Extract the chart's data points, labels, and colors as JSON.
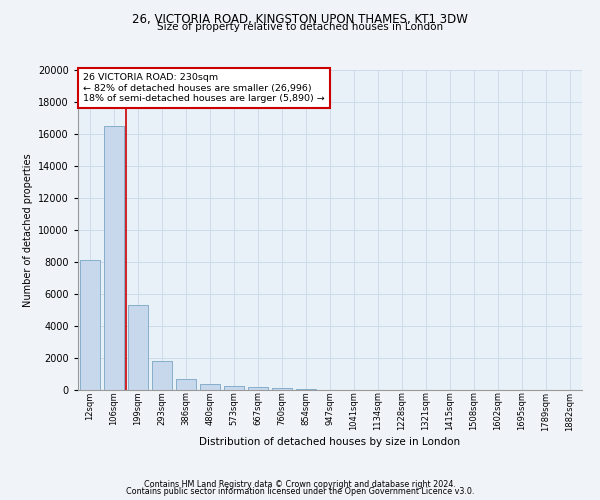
{
  "title1": "26, VICTORIA ROAD, KINGSTON UPON THAMES, KT1 3DW",
  "title2": "Size of property relative to detached houses in London",
  "xlabel": "Distribution of detached houses by size in London",
  "ylabel": "Number of detached properties",
  "footer1": "Contains HM Land Registry data © Crown copyright and database right 2024.",
  "footer2": "Contains public sector information licensed under the Open Government Licence v3.0.",
  "annotation_title": "26 VICTORIA ROAD: 230sqm",
  "annotation_line1": "← 82% of detached houses are smaller (26,996)",
  "annotation_line2": "18% of semi-detached houses are larger (5,890) →",
  "bar_color": "#c8d8ec",
  "bar_edge_color": "#6699bb",
  "annotation_box_color": "#ffffff",
  "annotation_box_edge": "#cc0000",
  "vline_color": "#cc0000",
  "grid_color": "#c8d8e8",
  "bg_color": "#e8f0f8",
  "fig_bg_color": "#f0f4f8",
  "categories": [
    "12sqm",
    "106sqm",
    "199sqm",
    "293sqm",
    "386sqm",
    "480sqm",
    "573sqm",
    "667sqm",
    "760sqm",
    "854sqm",
    "947sqm",
    "1041sqm",
    "1134sqm",
    "1228sqm",
    "1321sqm",
    "1415sqm",
    "1508sqm",
    "1602sqm",
    "1695sqm",
    "1789sqm",
    "1882sqm"
  ],
  "values": [
    8100,
    16500,
    5300,
    1800,
    700,
    400,
    230,
    170,
    100,
    50,
    0,
    0,
    0,
    0,
    0,
    0,
    0,
    0,
    0,
    0,
    0
  ],
  "ylim": [
    0,
    20000
  ],
  "yticks": [
    0,
    2000,
    4000,
    6000,
    8000,
    10000,
    12000,
    14000,
    16000,
    18000,
    20000
  ],
  "vline_x_index": 1.5
}
